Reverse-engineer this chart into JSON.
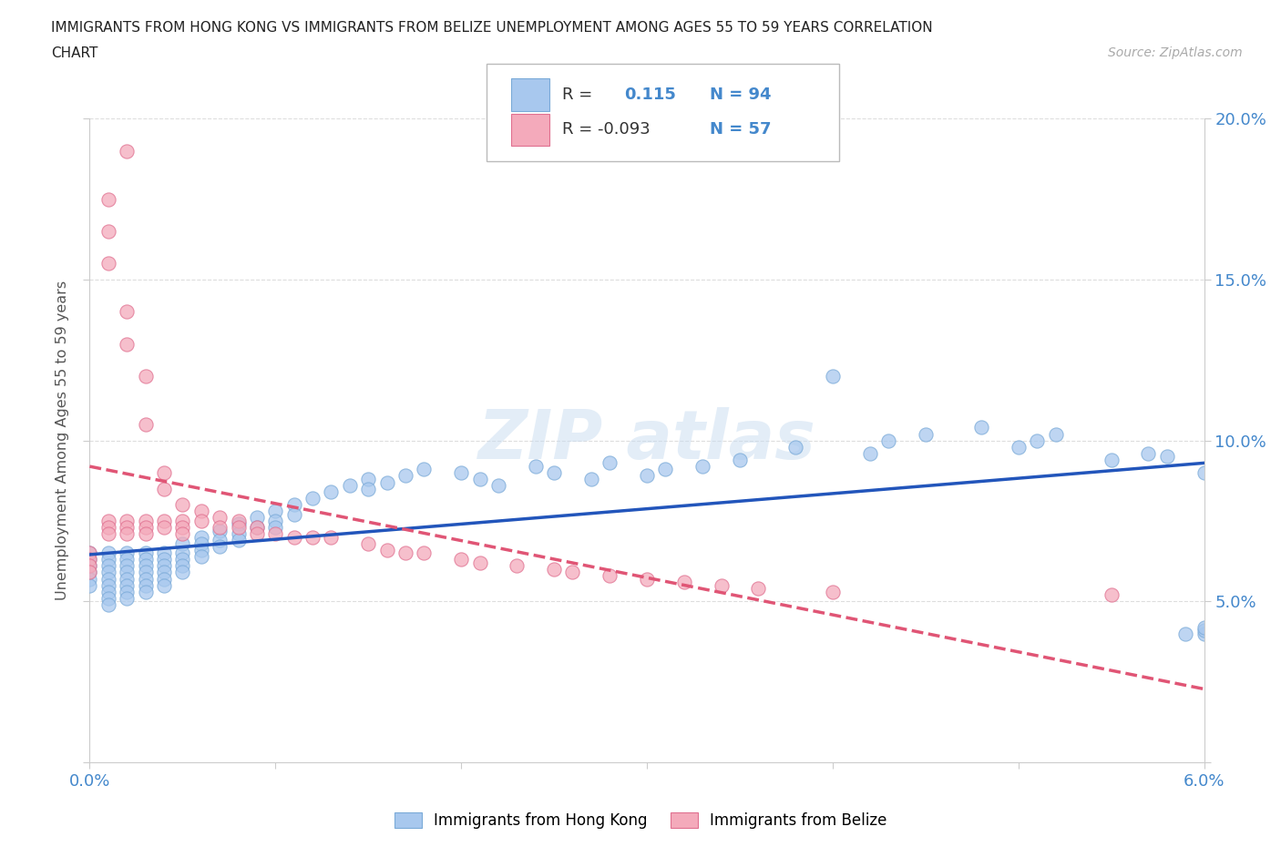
{
  "title_line1": "IMMIGRANTS FROM HONG KONG VS IMMIGRANTS FROM BELIZE UNEMPLOYMENT AMONG AGES 55 TO 59 YEARS CORRELATION",
  "title_line2": "CHART",
  "source": "Source: ZipAtlas.com",
  "ylabel": "Unemployment Among Ages 55 to 59 years",
  "xmin": 0.0,
  "xmax": 0.06,
  "ymin": 0.0,
  "ymax": 0.2,
  "x_tick_vals": [
    0.0,
    0.01,
    0.02,
    0.03,
    0.04,
    0.05,
    0.06
  ],
  "x_tick_labels": [
    "0.0%",
    "",
    "",
    "",
    "",
    "",
    "6.0%"
  ],
  "y_tick_vals": [
    0.0,
    0.05,
    0.1,
    0.15,
    0.2
  ],
  "y_tick_labels": [
    "",
    "5.0%",
    "10.0%",
    "15.0%",
    "20.0%"
  ],
  "hk_color": "#A8C8EE",
  "hk_edge_color": "#7AAAD8",
  "belize_color": "#F4AABB",
  "belize_edge_color": "#E07090",
  "hk_line_color": "#2255BB",
  "belize_line_color": "#E05575",
  "R_hk": 0.115,
  "N_hk": 94,
  "R_belize": -0.093,
  "N_belize": 57,
  "tick_label_color": "#4488CC",
  "grid_color": "#DDDDDD",
  "legend_items": [
    "Immigrants from Hong Kong",
    "Immigrants from Belize"
  ],
  "watermark_color": "#C8DCF0",
  "hk_x": [
    0.0,
    0.0,
    0.0,
    0.0,
    0.0,
    0.0,
    0.001,
    0.001,
    0.001,
    0.001,
    0.001,
    0.001,
    0.001,
    0.001,
    0.001,
    0.002,
    0.002,
    0.002,
    0.002,
    0.002,
    0.002,
    0.002,
    0.002,
    0.003,
    0.003,
    0.003,
    0.003,
    0.003,
    0.003,
    0.003,
    0.004,
    0.004,
    0.004,
    0.004,
    0.004,
    0.004,
    0.005,
    0.005,
    0.005,
    0.005,
    0.005,
    0.006,
    0.006,
    0.006,
    0.006,
    0.007,
    0.007,
    0.007,
    0.008,
    0.008,
    0.008,
    0.009,
    0.009,
    0.01,
    0.01,
    0.01,
    0.011,
    0.011,
    0.012,
    0.013,
    0.014,
    0.015,
    0.015,
    0.016,
    0.017,
    0.018,
    0.02,
    0.021,
    0.022,
    0.024,
    0.025,
    0.027,
    0.028,
    0.03,
    0.031,
    0.033,
    0.035,
    0.038,
    0.04,
    0.042,
    0.043,
    0.045,
    0.048,
    0.05,
    0.051,
    0.052,
    0.055,
    0.057,
    0.058,
    0.059,
    0.06,
    0.06,
    0.06,
    0.06
  ],
  "hk_y": [
    0.065,
    0.063,
    0.061,
    0.059,
    0.057,
    0.055,
    0.065,
    0.063,
    0.061,
    0.059,
    0.057,
    0.055,
    0.053,
    0.051,
    0.049,
    0.065,
    0.063,
    0.061,
    0.059,
    0.057,
    0.055,
    0.053,
    0.051,
    0.065,
    0.063,
    0.061,
    0.059,
    0.057,
    0.055,
    0.053,
    0.065,
    0.063,
    0.061,
    0.059,
    0.057,
    0.055,
    0.068,
    0.065,
    0.063,
    0.061,
    0.059,
    0.07,
    0.068,
    0.066,
    0.064,
    0.072,
    0.069,
    0.067,
    0.074,
    0.071,
    0.069,
    0.076,
    0.073,
    0.078,
    0.075,
    0.073,
    0.08,
    0.077,
    0.082,
    0.084,
    0.086,
    0.088,
    0.085,
    0.087,
    0.089,
    0.091,
    0.09,
    0.088,
    0.086,
    0.092,
    0.09,
    0.088,
    0.093,
    0.089,
    0.091,
    0.092,
    0.094,
    0.098,
    0.12,
    0.096,
    0.1,
    0.102,
    0.104,
    0.098,
    0.1,
    0.102,
    0.094,
    0.096,
    0.095,
    0.04,
    0.04,
    0.041,
    0.042,
    0.09
  ],
  "belize_x": [
    0.0,
    0.0,
    0.0,
    0.0,
    0.001,
    0.001,
    0.001,
    0.001,
    0.001,
    0.001,
    0.002,
    0.002,
    0.002,
    0.002,
    0.002,
    0.002,
    0.003,
    0.003,
    0.003,
    0.003,
    0.003,
    0.004,
    0.004,
    0.004,
    0.004,
    0.005,
    0.005,
    0.005,
    0.005,
    0.006,
    0.006,
    0.007,
    0.007,
    0.008,
    0.008,
    0.009,
    0.009,
    0.01,
    0.011,
    0.012,
    0.013,
    0.015,
    0.016,
    0.017,
    0.018,
    0.02,
    0.021,
    0.023,
    0.025,
    0.026,
    0.028,
    0.03,
    0.032,
    0.034,
    0.036,
    0.04,
    0.055
  ],
  "belize_y": [
    0.065,
    0.063,
    0.061,
    0.059,
    0.175,
    0.165,
    0.155,
    0.075,
    0.073,
    0.071,
    0.19,
    0.14,
    0.13,
    0.075,
    0.073,
    0.071,
    0.12,
    0.105,
    0.075,
    0.073,
    0.071,
    0.09,
    0.085,
    0.075,
    0.073,
    0.08,
    0.075,
    0.073,
    0.071,
    0.078,
    0.075,
    0.076,
    0.073,
    0.075,
    0.073,
    0.073,
    0.071,
    0.071,
    0.07,
    0.07,
    0.07,
    0.068,
    0.066,
    0.065,
    0.065,
    0.063,
    0.062,
    0.061,
    0.06,
    0.059,
    0.058,
    0.057,
    0.056,
    0.055,
    0.054,
    0.053,
    0.052
  ]
}
